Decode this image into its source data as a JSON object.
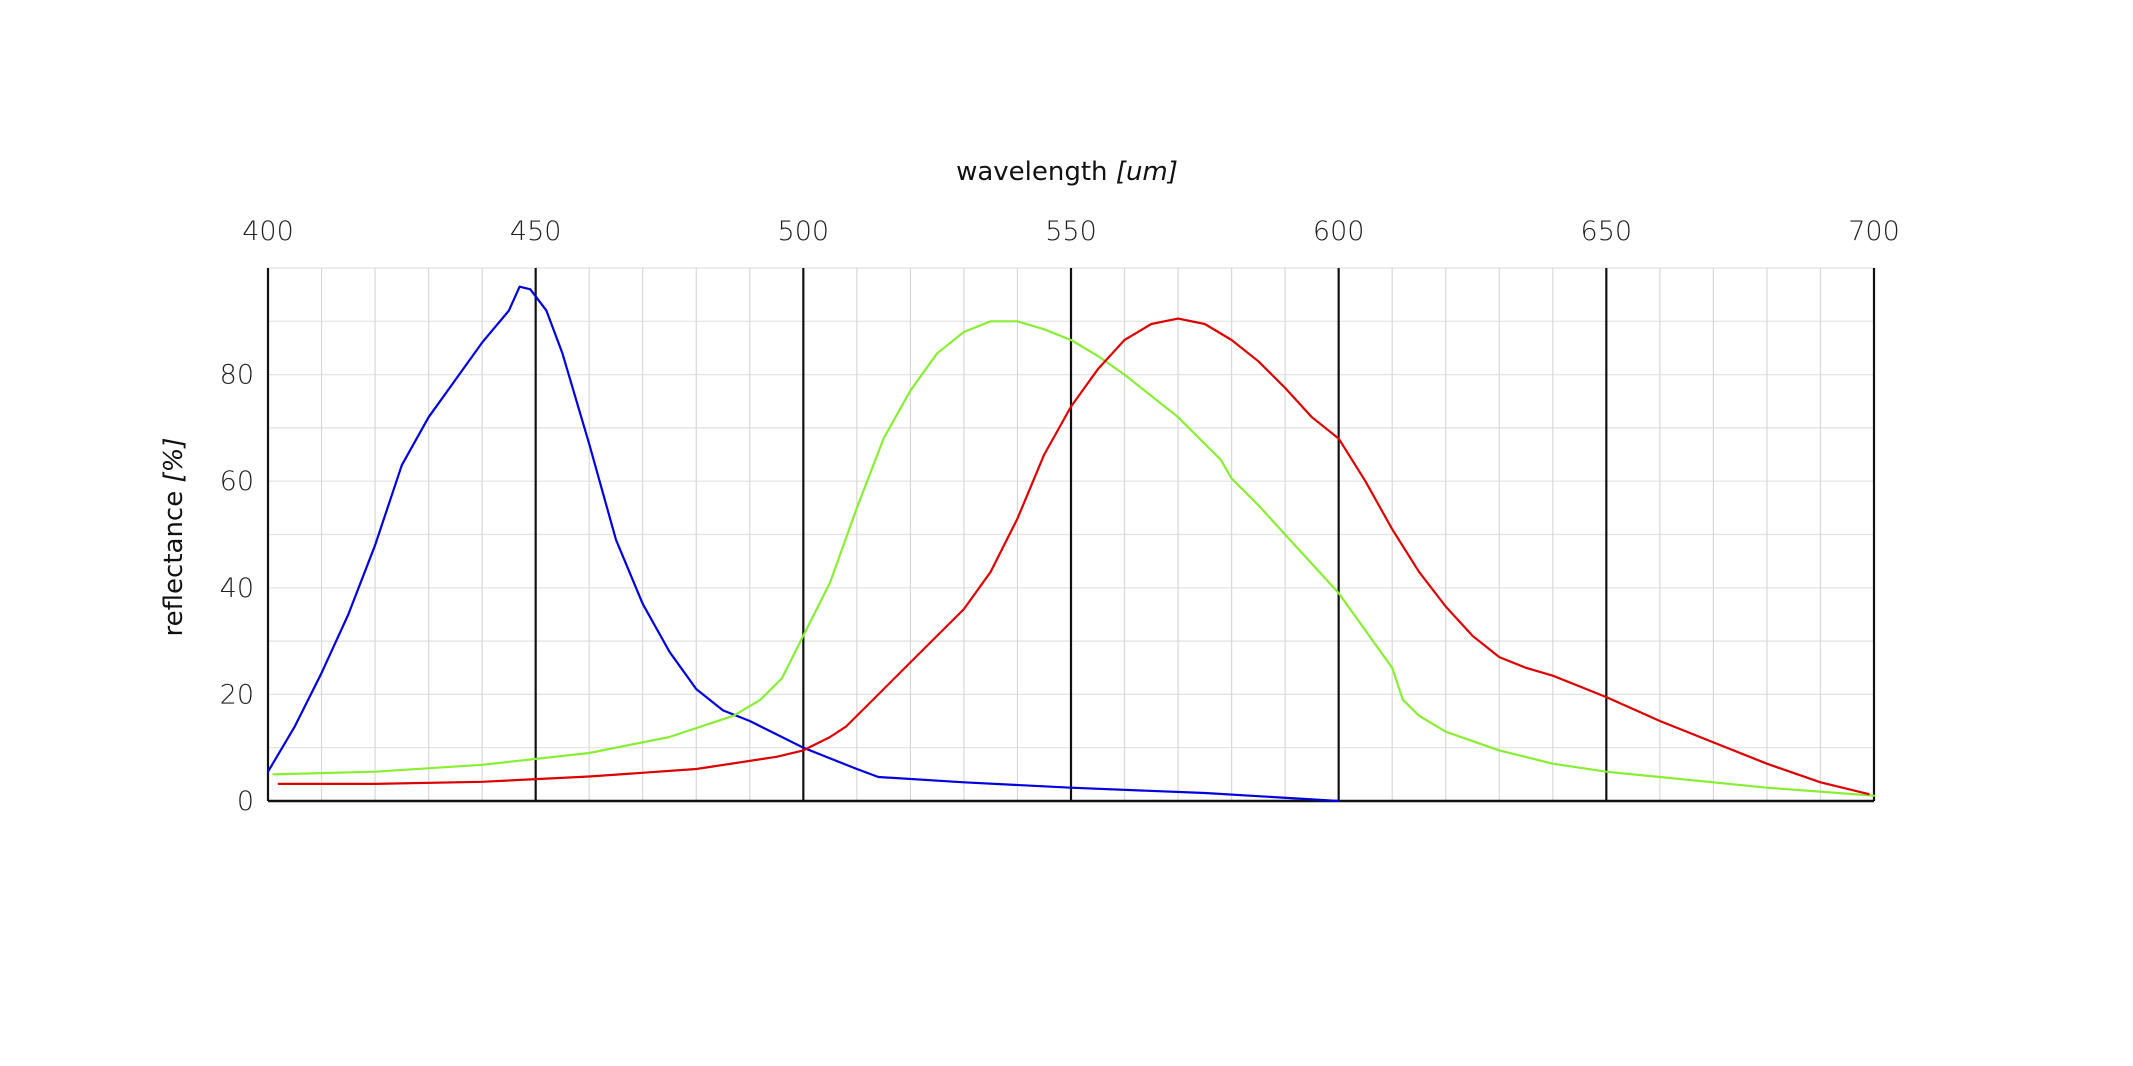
{
  "chart_data": {
    "type": "line",
    "xlabel": "wavelength",
    "xunit": "[um]",
    "ylabel": "reflectance",
    "yunit": "[%]",
    "xlim": [
      400,
      700
    ],
    "ylim": [
      0,
      100
    ],
    "xticks": [
      400,
      450,
      500,
      550,
      600,
      650,
      700
    ],
    "yticks": [
      0,
      20,
      40,
      60,
      80
    ],
    "x_axis_position": "top",
    "grid": true,
    "series": [
      {
        "color": "#0000dd",
        "points": [
          [
            400,
            5.5
          ],
          [
            405,
            14
          ],
          [
            410,
            24
          ],
          [
            415,
            35
          ],
          [
            420,
            48
          ],
          [
            425,
            63
          ],
          [
            430,
            72
          ],
          [
            435,
            79
          ],
          [
            440,
            86
          ],
          [
            445,
            92
          ],
          [
            447,
            96.5
          ],
          [
            449,
            96
          ],
          [
            452,
            92
          ],
          [
            455,
            84
          ],
          [
            460,
            67
          ],
          [
            465,
            49
          ],
          [
            470,
            37
          ],
          [
            475,
            28
          ],
          [
            480,
            21
          ],
          [
            485,
            17
          ],
          [
            490,
            15
          ],
          [
            495,
            12.5
          ],
          [
            500,
            10
          ],
          [
            505,
            8
          ],
          [
            510,
            6
          ],
          [
            514,
            4.5
          ],
          [
            530,
            3.5
          ],
          [
            550,
            2.5
          ],
          [
            575,
            1.5
          ],
          [
            600,
            0
          ]
        ]
      },
      {
        "color": "#88ee33",
        "points": [
          [
            401,
            5
          ],
          [
            420,
            5.5
          ],
          [
            440,
            6.8
          ],
          [
            460,
            9
          ],
          [
            475,
            12
          ],
          [
            487,
            16
          ],
          [
            492,
            19
          ],
          [
            496,
            23
          ],
          [
            500,
            31
          ],
          [
            505,
            41
          ],
          [
            510,
            55
          ],
          [
            515,
            68
          ],
          [
            520,
            77
          ],
          [
            525,
            84
          ],
          [
            530,
            88
          ],
          [
            535,
            90
          ],
          [
            540,
            90
          ],
          [
            545,
            88.5
          ],
          [
            550,
            86.5
          ],
          [
            555,
            83.5
          ],
          [
            560,
            80
          ],
          [
            565,
            76
          ],
          [
            570,
            72
          ],
          [
            575,
            67
          ],
          [
            578,
            64
          ],
          [
            580,
            60.5
          ],
          [
            585,
            55.5
          ],
          [
            590,
            50
          ],
          [
            595,
            44.5
          ],
          [
            600,
            39
          ],
          [
            605,
            32
          ],
          [
            610,
            25
          ],
          [
            612,
            19
          ],
          [
            615,
            16
          ],
          [
            620,
            13
          ],
          [
            630,
            9.5
          ],
          [
            640,
            7
          ],
          [
            650,
            5.5
          ],
          [
            660,
            4.5
          ],
          [
            680,
            2.5
          ],
          [
            700,
            1
          ]
        ]
      },
      {
        "color": "#dd0000",
        "points": [
          [
            402,
            3.2
          ],
          [
            420,
            3.2
          ],
          [
            440,
            3.6
          ],
          [
            460,
            4.6
          ],
          [
            480,
            6
          ],
          [
            495,
            8.3
          ],
          [
            500,
            9.5
          ],
          [
            505,
            12
          ],
          [
            508,
            14
          ],
          [
            512,
            18
          ],
          [
            520,
            26
          ],
          [
            530,
            36
          ],
          [
            535,
            43
          ],
          [
            540,
            53
          ],
          [
            545,
            65
          ],
          [
            550,
            74
          ],
          [
            555,
            81
          ],
          [
            560,
            86.5
          ],
          [
            565,
            89.5
          ],
          [
            570,
            90.5
          ],
          [
            575,
            89.5
          ],
          [
            580,
            86.5
          ],
          [
            585,
            82.5
          ],
          [
            590,
            77.5
          ],
          [
            595,
            72
          ],
          [
            600,
            68
          ],
          [
            605,
            60
          ],
          [
            610,
            51
          ],
          [
            615,
            43
          ],
          [
            620,
            36.5
          ],
          [
            625,
            31
          ],
          [
            630,
            27
          ],
          [
            635,
            25
          ],
          [
            640,
            23.5
          ],
          [
            645,
            21.5
          ],
          [
            650,
            19.5
          ],
          [
            660,
            15
          ],
          [
            670,
            11
          ],
          [
            680,
            7
          ],
          [
            690,
            3.5
          ],
          [
            699,
            1.3
          ]
        ]
      }
    ]
  }
}
